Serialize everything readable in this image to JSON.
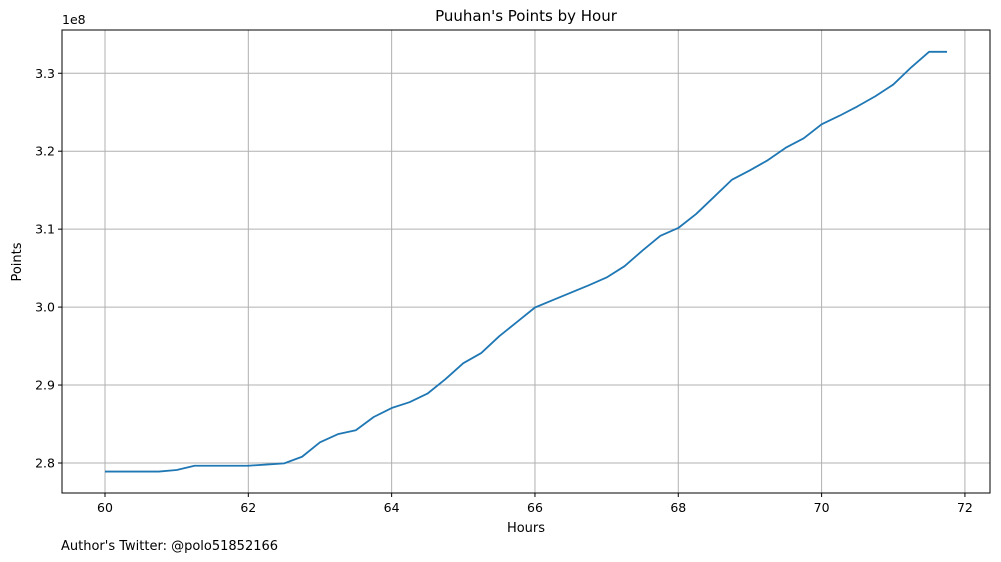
{
  "chart_data": {
    "type": "line",
    "title": "Puuhan's Points by Hour",
    "xlabel": "Hours",
    "ylabel": "Points",
    "y_offset_label": "1e8",
    "xlim": [
      59.4,
      72.35
    ],
    "ylim": [
      2.7615,
      3.3555
    ],
    "xticks": [
      60,
      62,
      64,
      66,
      68,
      70,
      72
    ],
    "xtick_labels": [
      "60",
      "62",
      "64",
      "66",
      "68",
      "70",
      "72"
    ],
    "yticks": [
      2.8,
      2.9,
      3.0,
      3.1,
      3.2,
      3.3
    ],
    "ytick_labels": [
      "2.8",
      "2.9",
      "3.0",
      "3.1",
      "3.2",
      "3.3"
    ],
    "grid": true,
    "series": [
      {
        "color": "#1f77b4",
        "x": [
          60,
          60.25,
          60.5,
          60.75,
          61,
          61.25,
          61.5,
          61.75,
          62,
          62.25,
          62.5,
          62.75,
          63,
          63.25,
          63.5,
          63.75,
          64,
          64.25,
          64.5,
          64.75,
          65,
          65.25,
          65.5,
          65.75,
          66,
          66.25,
          66.5,
          66.75,
          67,
          67.25,
          67.5,
          67.75,
          68,
          68.25,
          68.5,
          68.75,
          69,
          69.25,
          69.5,
          69.75,
          70,
          70.25,
          70.5,
          70.75,
          71,
          71.25,
          71.5,
          71.75
        ],
        "y": [
          2.789,
          2.789,
          2.789,
          2.789,
          2.791,
          2.7965,
          2.7965,
          2.7965,
          2.7965,
          2.798,
          2.7995,
          2.808,
          2.8265,
          2.837,
          2.842,
          2.859,
          2.8705,
          2.878,
          2.889,
          2.9075,
          2.928,
          2.941,
          2.9625,
          2.981,
          2.9995,
          3.009,
          3.0185,
          3.028,
          3.038,
          3.0525,
          3.0725,
          3.0915,
          3.1015,
          3.1195,
          3.1415,
          3.1635,
          3.1755,
          3.1885,
          3.2045,
          3.2165,
          3.2345,
          3.2455,
          3.2575,
          3.2705,
          3.2855,
          3.3075,
          3.3275,
          3.3275
        ]
      }
    ]
  },
  "footer": "Author's Twitter: @polo51852166"
}
